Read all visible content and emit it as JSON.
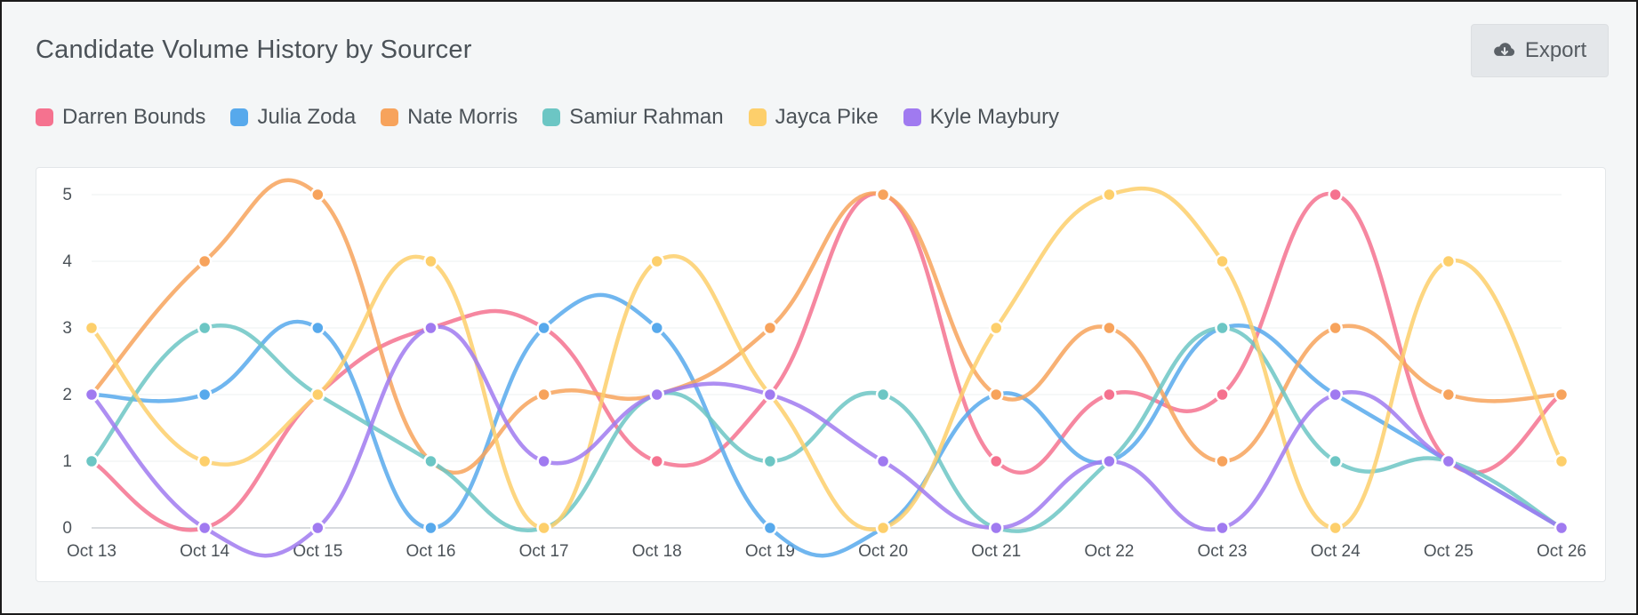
{
  "header": {
    "title": "Candidate Volume History by Sourcer",
    "export_label": "Export"
  },
  "chart_data": {
    "type": "line",
    "title": "Candidate Volume History by Sourcer",
    "xlabel": "",
    "ylabel": "",
    "ylim": [
      0,
      5
    ],
    "yticks": [
      "0",
      "1",
      "2",
      "3",
      "4",
      "5"
    ],
    "grid": true,
    "smooth": true,
    "legend_position": "top-left",
    "categories": [
      "Oct 13",
      "Oct 14",
      "Oct 15",
      "Oct 16",
      "Oct 17",
      "Oct 18",
      "Oct 19",
      "Oct 20",
      "Oct 21",
      "Oct 22",
      "Oct 23",
      "Oct 24",
      "Oct 25",
      "Oct 26"
    ],
    "series": [
      {
        "name": "Darren Bounds",
        "color": "#f5728f",
        "values": [
          1,
          0,
          2,
          3,
          3,
          1,
          2,
          5,
          1,
          2,
          2,
          5,
          1,
          2
        ]
      },
      {
        "name": "Julia Zoda",
        "color": "#57a9ec",
        "values": [
          2,
          2,
          3,
          0,
          3,
          3,
          0,
          0,
          2,
          1,
          3,
          2,
          1,
          0
        ]
      },
      {
        "name": "Nate Morris",
        "color": "#f7a35c",
        "values": [
          2,
          4,
          5,
          1,
          2,
          2,
          3,
          5,
          2,
          3,
          1,
          3,
          2,
          2
        ]
      },
      {
        "name": "Samiur Rahman",
        "color": "#6cc6c4",
        "values": [
          1,
          3,
          2,
          1,
          0,
          2,
          1,
          2,
          0,
          1,
          3,
          1,
          1,
          0
        ]
      },
      {
        "name": "Jayca Pike",
        "color": "#fdcf6b",
        "values": [
          3,
          1,
          2,
          4,
          0,
          4,
          2,
          0,
          3,
          5,
          4,
          0,
          4,
          1
        ]
      },
      {
        "name": "Kyle Maybury",
        "color": "#a07af0",
        "values": [
          2,
          0,
          0,
          3,
          1,
          2,
          2,
          1,
          0,
          1,
          0,
          2,
          1,
          0
        ]
      }
    ]
  }
}
